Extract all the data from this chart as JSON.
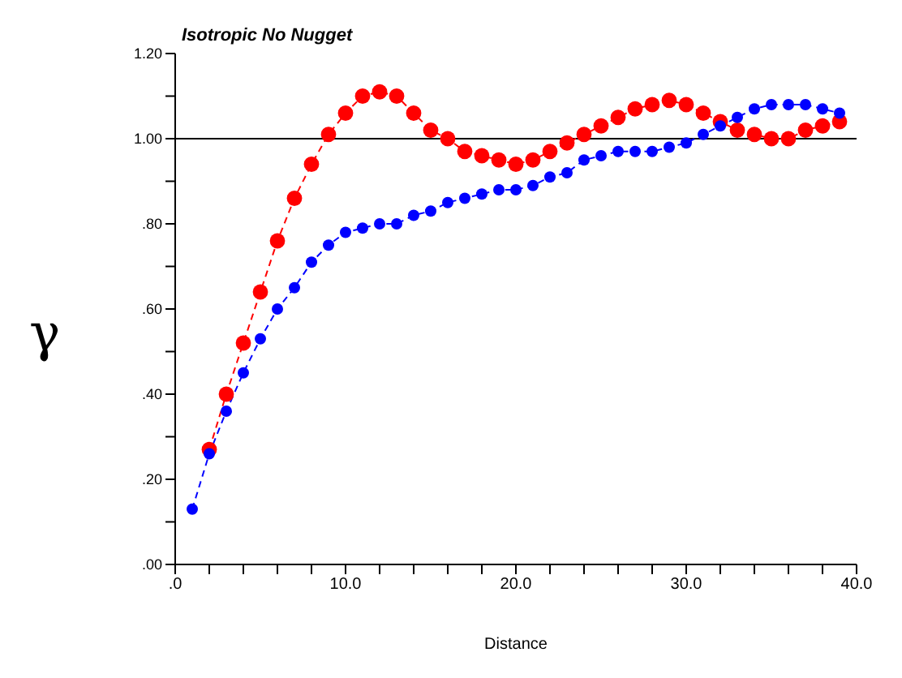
{
  "chart_data": {
    "type": "line",
    "title": "Isotropic  No Nugget",
    "xlabel": "Distance",
    "ylabel": "γ",
    "x": [
      1,
      2,
      3,
      4,
      5,
      6,
      7,
      8,
      9,
      10,
      11,
      12,
      13,
      14,
      15,
      16,
      17,
      18,
      19,
      20,
      21,
      22,
      23,
      24,
      25,
      26,
      27,
      28,
      29,
      30,
      31,
      32,
      33,
      34,
      35,
      36,
      37,
      38,
      39
    ],
    "series": [
      {
        "color": "#ff0000",
        "values": [
          null,
          0.27,
          0.4,
          0.52,
          0.64,
          0.76,
          0.86,
          0.94,
          1.01,
          1.06,
          1.1,
          1.11,
          1.1,
          1.06,
          1.02,
          1.0,
          0.97,
          0.96,
          0.95,
          0.94,
          0.95,
          0.97,
          0.99,
          1.01,
          1.03,
          1.05,
          1.07,
          1.08,
          1.09,
          1.08,
          1.06,
          1.04,
          1.02,
          1.01,
          1.0,
          1.0,
          1.02,
          1.03,
          1.04
        ]
      },
      {
        "color": "#0000ff",
        "values": [
          0.13,
          0.26,
          0.36,
          0.45,
          0.53,
          0.6,
          0.65,
          0.71,
          0.75,
          0.78,
          0.79,
          0.8,
          0.8,
          0.82,
          0.83,
          0.85,
          0.86,
          0.87,
          0.88,
          0.88,
          0.89,
          0.91,
          0.92,
          0.95,
          0.96,
          0.97,
          0.97,
          0.97,
          0.98,
          0.99,
          1.01,
          1.03,
          1.05,
          1.07,
          1.08,
          1.08,
          1.08,
          1.07,
          1.06
        ]
      }
    ],
    "xlim": [
      0,
      40
    ],
    "xticks": [
      {
        "value": 0,
        "label": ".0"
      },
      {
        "value": 2,
        "label": null
      },
      {
        "value": 4,
        "label": null
      },
      {
        "value": 6,
        "label": null
      },
      {
        "value": 8,
        "label": null
      },
      {
        "value": 10,
        "label": "10.0"
      },
      {
        "value": 12,
        "label": null
      },
      {
        "value": 14,
        "label": null
      },
      {
        "value": 16,
        "label": null
      },
      {
        "value": 18,
        "label": null
      },
      {
        "value": 20,
        "label": "20.0"
      },
      {
        "value": 22,
        "label": null
      },
      {
        "value": 24,
        "label": null
      },
      {
        "value": 26,
        "label": null
      },
      {
        "value": 28,
        "label": null
      },
      {
        "value": 30,
        "label": "30.0"
      },
      {
        "value": 32,
        "label": null
      },
      {
        "value": 34,
        "label": null
      },
      {
        "value": 36,
        "label": null
      },
      {
        "value": 38,
        "label": null
      },
      {
        "value": 40,
        "label": "40.0"
      }
    ],
    "ylim": [
      0,
      1.2
    ],
    "yticks": [
      {
        "value": 0,
        "label": ".00"
      },
      {
        "value": 0.1,
        "label": null
      },
      {
        "value": 0.2,
        "label": ".20"
      },
      {
        "value": 0.3,
        "label": null
      },
      {
        "value": 0.4,
        "label": ".40"
      },
      {
        "value": 0.5,
        "label": null
      },
      {
        "value": 0.6,
        "label": ".60"
      },
      {
        "value": 0.7,
        "label": null
      },
      {
        "value": 0.8,
        "label": ".80"
      },
      {
        "value": 0.9,
        "label": null
      },
      {
        "value": 1.0,
        "label": "1.00"
      },
      {
        "value": 1.1,
        "label": null
      },
      {
        "value": 1.2,
        "label": "1.20"
      }
    ],
    "ref_lines": [
      {
        "axis": "y",
        "value": 1.0,
        "color": "#000000"
      }
    ],
    "grid": false,
    "legend": false,
    "marker": "circle",
    "line_style": "dashed"
  }
}
